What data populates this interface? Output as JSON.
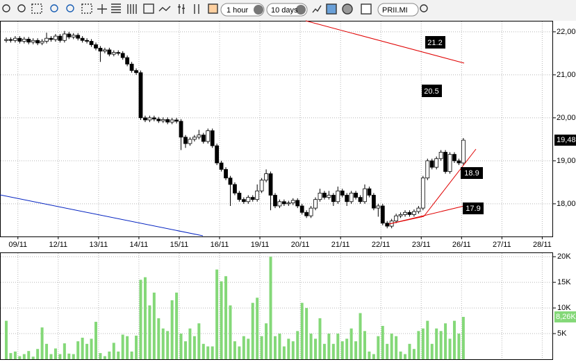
{
  "toolbar": {
    "interval": "1 hour",
    "range": "10 days",
    "symbol": "PRII.MI"
  },
  "chart_data": {
    "type": "candlestick",
    "ohlc": [
      [
        21.8,
        21.87,
        21.75,
        21.82
      ],
      [
        21.82,
        21.87,
        21.75,
        21.8
      ],
      [
        21.8,
        21.9,
        21.75,
        21.85
      ],
      [
        21.85,
        21.9,
        21.73,
        21.78
      ],
      [
        21.78,
        21.88,
        21.73,
        21.83
      ],
      [
        21.83,
        21.88,
        21.71,
        21.76
      ],
      [
        21.76,
        21.85,
        21.71,
        21.8
      ],
      [
        21.8,
        21.85,
        21.69,
        21.74
      ],
      [
        21.74,
        21.83,
        21.69,
        21.78
      ],
      [
        21.78,
        21.98,
        21.73,
        21.85
      ],
      [
        21.85,
        21.9,
        21.77,
        21.82
      ],
      [
        21.82,
        21.95,
        21.77,
        21.9
      ],
      [
        21.9,
        21.95,
        21.75,
        21.8
      ],
      [
        21.8,
        22.02,
        21.75,
        21.95
      ],
      [
        21.95,
        22.0,
        21.83,
        21.88
      ],
      [
        21.88,
        21.97,
        21.83,
        21.92
      ],
      [
        21.92,
        21.97,
        21.8,
        21.85
      ],
      [
        21.85,
        21.9,
        21.75,
        21.8
      ],
      [
        21.8,
        21.85,
        21.73,
        21.78
      ],
      [
        21.78,
        21.83,
        21.65,
        21.7
      ],
      [
        21.7,
        21.75,
        21.57,
        21.62
      ],
      [
        21.62,
        21.67,
        21.3,
        21.55
      ],
      [
        21.55,
        21.63,
        21.5,
        21.58
      ],
      [
        21.58,
        21.63,
        21.43,
        21.48
      ],
      [
        21.48,
        21.57,
        21.43,
        21.52
      ],
      [
        21.52,
        21.57,
        21.45,
        21.5
      ],
      [
        21.5,
        21.55,
        21.35,
        21.4
      ],
      [
        21.4,
        21.45,
        21.2,
        21.25
      ],
      [
        21.25,
        21.3,
        21.05,
        21.1
      ],
      [
        21.1,
        21.15,
        21.0,
        21.05
      ],
      [
        21.05,
        21.1,
        19.95,
        20.0
      ],
      [
        20.0,
        20.05,
        19.9,
        19.95
      ],
      [
        19.95,
        20.05,
        19.9,
        20.0
      ],
      [
        20.0,
        20.05,
        19.92,
        19.97
      ],
      [
        19.97,
        20.02,
        19.88,
        19.93
      ],
      [
        19.93,
        20.01,
        19.88,
        19.96
      ],
      [
        19.96,
        20.01,
        19.85,
        19.9
      ],
      [
        19.9,
        20.0,
        19.85,
        19.95
      ],
      [
        19.95,
        20.0,
        19.87,
        19.92
      ],
      [
        19.92,
        19.97,
        19.25,
        19.55
      ],
      [
        19.55,
        19.6,
        19.3,
        19.4
      ],
      [
        19.4,
        19.55,
        19.35,
        19.5
      ],
      [
        19.5,
        19.6,
        19.45,
        19.55
      ],
      [
        19.55,
        19.72,
        19.5,
        19.6
      ],
      [
        19.6,
        19.65,
        19.4,
        19.45
      ],
      [
        19.45,
        19.75,
        19.4,
        19.7
      ],
      [
        19.7,
        19.75,
        19.3,
        19.35
      ],
      [
        19.35,
        19.4,
        18.9,
        18.95
      ],
      [
        18.95,
        19.0,
        18.75,
        18.8
      ],
      [
        18.8,
        18.85,
        18.55,
        18.6
      ],
      [
        18.6,
        18.65,
        17.95,
        18.45
      ],
      [
        18.45,
        18.5,
        18.2,
        18.25
      ],
      [
        18.25,
        18.3,
        18.05,
        18.1
      ],
      [
        18.1,
        18.15,
        18.0,
        18.05
      ],
      [
        18.05,
        18.2,
        18.0,
        18.15
      ],
      [
        18.15,
        18.2,
        18.05,
        18.1
      ],
      [
        18.1,
        18.45,
        18.05,
        18.3
      ],
      [
        18.3,
        18.6,
        18.25,
        18.55
      ],
      [
        18.55,
        18.8,
        18.5,
        18.7
      ],
      [
        18.7,
        18.75,
        17.85,
        18.2
      ],
      [
        18.2,
        18.25,
        17.9,
        17.95
      ],
      [
        17.95,
        18.1,
        17.9,
        18.05
      ],
      [
        18.05,
        18.1,
        17.95,
        18.0
      ],
      [
        18.0,
        18.07,
        17.95,
        18.02
      ],
      [
        18.02,
        18.13,
        17.97,
        18.08
      ],
      [
        18.08,
        18.13,
        17.9,
        17.95
      ],
      [
        17.95,
        18.0,
        17.75,
        17.8
      ],
      [
        17.8,
        17.85,
        17.67,
        17.72
      ],
      [
        17.72,
        17.95,
        17.67,
        17.9
      ],
      [
        17.9,
        18.15,
        17.85,
        18.1
      ],
      [
        18.1,
        18.35,
        18.05,
        18.25
      ],
      [
        18.25,
        18.3,
        18.1,
        18.15
      ],
      [
        18.15,
        18.3,
        18.1,
        18.2
      ],
      [
        18.2,
        18.25,
        17.95,
        18.05
      ],
      [
        18.05,
        18.4,
        18.0,
        18.3
      ],
      [
        18.3,
        18.35,
        18.15,
        18.2
      ],
      [
        18.2,
        18.25,
        17.95,
        18.05
      ],
      [
        18.05,
        18.3,
        18.0,
        18.25
      ],
      [
        18.25,
        18.3,
        18.1,
        18.15
      ],
      [
        18.15,
        18.2,
        18.0,
        18.05
      ],
      [
        18.05,
        18.45,
        18.0,
        18.35
      ],
      [
        18.35,
        18.4,
        18.15,
        18.2
      ],
      [
        18.2,
        18.25,
        17.85,
        17.9
      ],
      [
        17.9,
        18.0,
        17.7,
        17.95
      ],
      [
        17.95,
        18.0,
        17.5,
        17.55
      ],
      [
        17.55,
        17.6,
        17.43,
        17.48
      ],
      [
        17.48,
        17.65,
        17.43,
        17.6
      ],
      [
        17.6,
        17.77,
        17.55,
        17.72
      ],
      [
        17.72,
        17.8,
        17.67,
        17.75
      ],
      [
        17.75,
        17.85,
        17.7,
        17.8
      ],
      [
        17.8,
        17.85,
        17.7,
        17.75
      ],
      [
        17.75,
        17.87,
        17.7,
        17.82
      ],
      [
        17.82,
        17.95,
        17.77,
        17.9
      ],
      [
        17.9,
        18.65,
        17.85,
        18.6
      ],
      [
        18.6,
        19.05,
        18.55,
        19.0
      ],
      [
        19.0,
        19.05,
        18.8,
        18.85
      ],
      [
        18.85,
        19.1,
        18.8,
        19.05
      ],
      [
        19.05,
        19.25,
        19.0,
        19.2
      ],
      [
        19.2,
        19.25,
        18.7,
        18.75
      ],
      [
        18.75,
        19.2,
        18.7,
        19.15
      ],
      [
        19.15,
        19.2,
        18.95,
        19.0
      ],
      [
        19.0,
        19.05,
        18.9,
        18.95
      ],
      [
        18.95,
        19.53,
        18.9,
        19.48
      ]
    ],
    "up_color": "#ffffff",
    "down_color": "#000000",
    "volume": [
      7500,
      1200,
      1500,
      600,
      1000,
      1600,
      500,
      2000,
      6200,
      3000,
      1000,
      2100,
      1000,
      3100,
      1100,
      1000,
      3500,
      4200,
      3000,
      4000,
      7300,
      1200,
      600,
      1500,
      3200,
      1500,
      4800,
      4500,
      1500,
      4600,
      15500,
      16000,
      10500,
      13000,
      8000,
      6000,
      5500,
      11500,
      13000,
      5000,
      3500,
      6000,
      4500,
      7000,
      3000,
      2500,
      2500,
      17500,
      15200,
      16200,
      10500,
      3500,
      2500,
      4500,
      4000,
      11000,
      12000,
      4500,
      7000,
      20000,
      4500,
      5000,
      2500,
      4000,
      3500,
      5500,
      11000,
      10000,
      5000,
      4000,
      8000,
      3000,
      5000,
      3000,
      5000,
      3500,
      4000,
      6000,
      3500,
      9000,
      5500,
      1500,
      1000,
      4500,
      6500,
      3000,
      5000,
      4500,
      1500,
      1000,
      3000,
      2000,
      5500,
      6000,
      7500,
      3000,
      6000,
      5500,
      7000,
      4000,
      7500,
      5000,
      8260
    ],
    "volume_color": "#84d878",
    "xlim": [
      -1.24,
      122.02
    ],
    "xticks": [
      {
        "value": 2.6,
        "label": "09/11"
      },
      {
        "value": 11.6,
        "label": "12/11"
      },
      {
        "value": 20.6,
        "label": "13/11"
      },
      {
        "value": 29.6,
        "label": "14/11"
      },
      {
        "value": 38.6,
        "label": "15/11"
      },
      {
        "value": 47.6,
        "label": "16/11"
      },
      {
        "value": 56.6,
        "label": "19/11"
      },
      {
        "value": 65.6,
        "label": "20/11"
      },
      {
        "value": 74.6,
        "label": "21/11"
      },
      {
        "value": 83.6,
        "label": "22/11"
      },
      {
        "value": 92.6,
        "label": "23/11"
      },
      {
        "value": 101.6,
        "label": "26/11"
      },
      {
        "value": 110.6,
        "label": "27/11"
      },
      {
        "value": 119.6,
        "label": "28/11"
      }
    ],
    "ylim": [
      17.24,
      22.24
    ],
    "yticks": [
      {
        "value": 22,
        "label": "22,00"
      },
      {
        "value": 21,
        "label": "21,00"
      },
      {
        "value": 20,
        "label": "20,00"
      },
      {
        "value": 19,
        "label": "19,00"
      },
      {
        "value": 18,
        "label": "18,00"
      }
    ],
    "vlim": [
      0,
      20700
    ],
    "vticks": [
      {
        "value": 20000,
        "label": "20K"
      },
      {
        "value": 15000,
        "label": "15K"
      },
      {
        "value": 10000,
        "label": "10K"
      },
      {
        "value": 5000,
        "label": "5K"
      }
    ],
    "last_price": {
      "value": 19.48,
      "label": "19,48"
    },
    "last_volume": {
      "value": 8260,
      "label": "8,26K"
    },
    "annotations": [
      "21.2",
      "20.5",
      "18.9",
      "17.9"
    ],
    "grid": true
  }
}
